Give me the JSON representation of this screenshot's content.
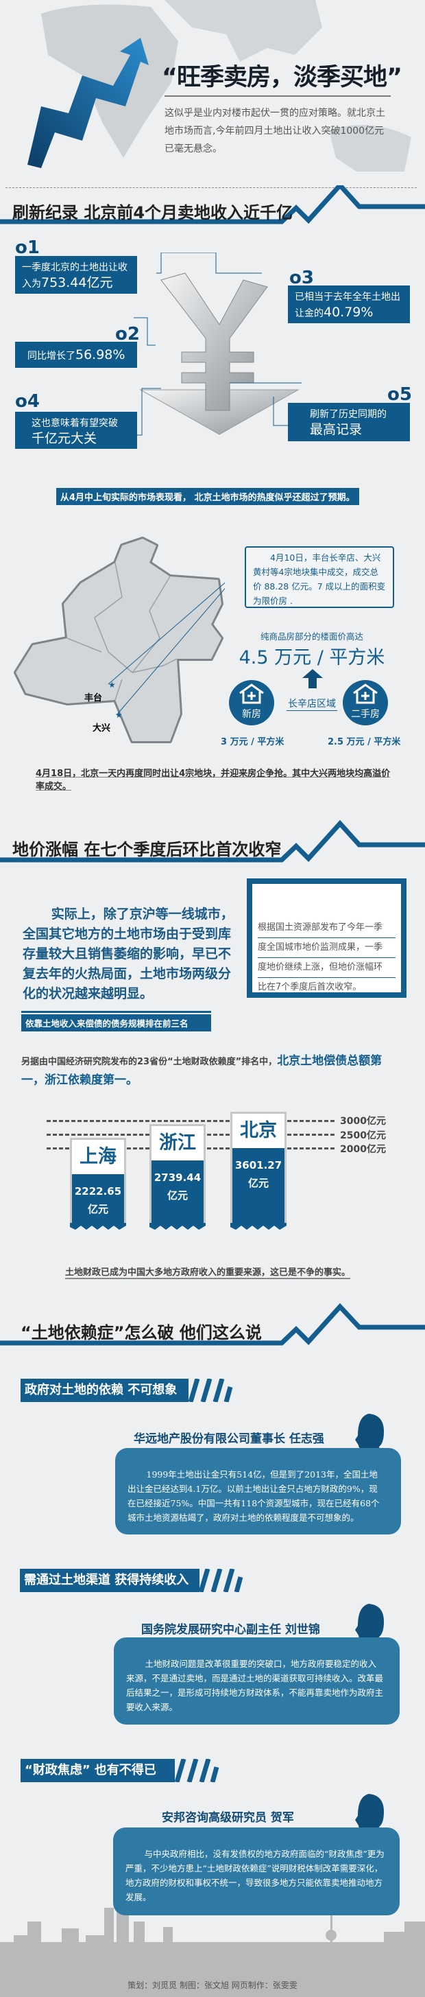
{
  "hero": {
    "title": "“旺季卖房，淡季买地”",
    "intro": "这似乎是业内对楼市起伏一贯的应对策略。就北京土地市场而言,今年前四月土地出让收入突破1000亿元已毫无悬念。"
  },
  "section1": {
    "title": "刷新纪录  北京前4个月卖地收入近千亿",
    "facts": [
      {
        "num": "o1",
        "text": "一季度北京的土地出让收入为",
        "value": "753.44亿元"
      },
      {
        "num": "o2",
        "text": "同比增长了",
        "value": "56.98%"
      },
      {
        "num": "o3",
        "text": "已相当于去年全年土地出让金的",
        "value": "40.79%"
      },
      {
        "num": "o4",
        "text": "这也意味着有望突破",
        "value": "千亿元大关"
      },
      {
        "num": "o5",
        "text": "刷新了历史同期的",
        "value": "最高记录"
      }
    ],
    "yen_icon": "yen-down-arrow-icon",
    "banner": "从4月中上旬实际的市场表现看，  北京土地市场的热度似乎还超过了预期。",
    "map": {
      "label_fengtai": "丰台",
      "label_daxing": "大兴"
    },
    "callout": "4月10日，丰台长辛店、大兴黄村等4宗地块集中成交，成交总价 88.28 亿元。7 成以上的面积变为限价房 .",
    "price_caption": "纯商品房部分的楼面价高达",
    "price_value": "4.5 万元 / 平方米",
    "area": "长辛店区域",
    "new_house": {
      "label": "新房",
      "price": "3 万元 / 平方米"
    },
    "second_house": {
      "label": "二手房",
      "price": "2.5 万元 / 平方米"
    },
    "note": "4月18日，北京一天内再度同时出让4宗地块，并迎来房企争抢。其中大兴两地块均高溢价率成交。"
  },
  "section2": {
    "title": "地价涨幅  在七个季度后环比首次收窄",
    "para": "实际上，除了京沪等一线城市，全国其它地方的土地市场由于受到库存量较大且销售萎缩的影响，早已不复去年的火热局面，土地市场两级分化的状况越来越明显。",
    "box_lines": [
      "根据国土资源部发布了今年一季",
      "度全国城市地价监测成果，一季",
      "度地价继续上涨，但地价涨幅环",
      "比在7个季度后首次收窄。"
    ],
    "banner": "依靠土地收入来偿债的债务规模排在前三名",
    "para2_a": "另据由中国经济研究院发布的23省份“土地财政依赖度”排名中，",
    "para2_b": "北京土地偿债总额第一，浙江依赖度第一。",
    "gridlines": [
      "3000亿元",
      "2500亿元",
      "2000亿元"
    ],
    "bars": [
      {
        "city": "上海",
        "value": "2222.65",
        "unit": "亿元"
      },
      {
        "city": "浙江",
        "value": "2739.44",
        "unit": "亿元"
      },
      {
        "city": "北京",
        "value": "3601.27",
        "unit": "亿元"
      }
    ],
    "conclusion": "土地财政已成为中国大多地方政府收入的重要来源，这已是不争的事实。"
  },
  "section3": {
    "title": "“土地依赖症”怎么破  他们这么说",
    "quotes": [
      {
        "banner": "政府对土地的依赖 不可想象",
        "speaker": "华远地产股份有限公司董事长  任志强",
        "text": "1999年土地出让金只有514亿，但是到了2013年，全国土地出让金已经达到4.1万亿。以前土地出让金只占地方财政的9%，现在已经接近75%。中国一共有118个资源型城市，现在已经有68个城市土地资源枯竭了，政府对土地的依赖程度是不可想象的。"
      },
      {
        "banner": "需通过土地渠道 获得持续收入",
        "speaker": "国务院发展研究中心副主任  刘世锦",
        "text": "土地财政问题是改革很重要的突破口，地方政府要稳定的收入来源，不是通过卖地，而是通过土地的渠道获取可持续收入。改革最后结果之一，是形成可持续地方财政体系，不能再靠卖地作为政府主要收入来源。"
      },
      {
        "banner": "“财政焦虑”  也有不得已",
        "speaker": "安邦咨询高级研究员  贺军",
        "text": "与中央政府相比，没有发债权的地方政府面临的“财政焦虑”更为严重，不少地方患上“土地财政依赖症”说明财税体制改革需要深化，地方政府的财权和事权不统一，导致很多地方只能依靠卖地推动地方发展。"
      }
    ]
  },
  "credits": "策划：刘觅觅  制图：张文旭  网页制作：张雯雯",
  "colors": {
    "brand_blue": "#135e8f",
    "bubble": "#2f7aa4",
    "background": "#eeeff0"
  }
}
